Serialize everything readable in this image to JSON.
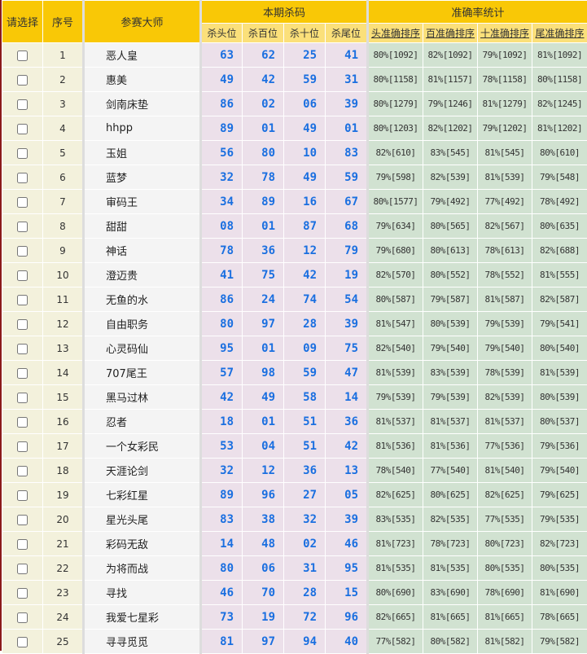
{
  "header": {
    "select": "请选择",
    "no": "序号",
    "master": "参赛大师",
    "kill_group": "本期杀码",
    "acc_group": "准确率统计",
    "kill_cols": [
      "杀头位",
      "杀百位",
      "杀十位",
      "杀尾位"
    ],
    "acc_cols": [
      "头准确排序",
      "百准确排序",
      "十准确排序",
      "尾准确排序"
    ]
  },
  "colors": {
    "header": "#f9c806",
    "subheader": "#fbe07a",
    "kill_text": "#1a6fe0",
    "acc_bg": "#d1e2d1",
    "kill_bg": "#ece0ea"
  },
  "rows": [
    {
      "no": "1",
      "name": "恶人皇",
      "kill": [
        "63",
        "62",
        "25",
        "41"
      ],
      "acc": [
        "80%[1092]",
        "82%[1092]",
        "79%[1092]",
        "81%[1092]"
      ]
    },
    {
      "no": "2",
      "name": "惠美",
      "kill": [
        "49",
        "42",
        "59",
        "31"
      ],
      "acc": [
        "80%[1158]",
        "81%[1157]",
        "78%[1158]",
        "80%[1158]"
      ]
    },
    {
      "no": "3",
      "name": "剑南床垫",
      "kill": [
        "86",
        "02",
        "06",
        "39"
      ],
      "acc": [
        "80%[1279]",
        "79%[1246]",
        "81%[1279]",
        "82%[1245]"
      ]
    },
    {
      "no": "4",
      "name": "hhpp",
      "kill": [
        "89",
        "01",
        "49",
        "01"
      ],
      "acc": [
        "80%[1203]",
        "82%[1202]",
        "79%[1202]",
        "81%[1202]"
      ]
    },
    {
      "no": "5",
      "name": "玉姐",
      "kill": [
        "56",
        "80",
        "10",
        "83"
      ],
      "acc": [
        "82%[610]",
        "83%[545]",
        "81%[545]",
        "80%[610]"
      ]
    },
    {
      "no": "6",
      "name": "蓝梦",
      "kill": [
        "32",
        "78",
        "49",
        "59"
      ],
      "acc": [
        "79%[598]",
        "82%[539]",
        "81%[539]",
        "79%[548]"
      ]
    },
    {
      "no": "7",
      "name": "审码王",
      "kill": [
        "34",
        "89",
        "16",
        "67"
      ],
      "acc": [
        "80%[1577]",
        "79%[492]",
        "77%[492]",
        "78%[492]"
      ]
    },
    {
      "no": "8",
      "name": "甜甜",
      "kill": [
        "08",
        "01",
        "87",
        "68"
      ],
      "acc": [
        "79%[634]",
        "80%[565]",
        "82%[567]",
        "80%[635]"
      ]
    },
    {
      "no": "9",
      "name": "神话",
      "kill": [
        "78",
        "36",
        "12",
        "79"
      ],
      "acc": [
        "79%[680]",
        "80%[613]",
        "78%[613]",
        "82%[688]"
      ]
    },
    {
      "no": "10",
      "name": "澄迈贵",
      "kill": [
        "41",
        "75",
        "42",
        "19"
      ],
      "acc": [
        "82%[570]",
        "80%[552]",
        "78%[552]",
        "81%[555]"
      ]
    },
    {
      "no": "11",
      "name": "无鱼的水",
      "kill": [
        "86",
        "24",
        "74",
        "54"
      ],
      "acc": [
        "80%[587]",
        "79%[587]",
        "81%[587]",
        "82%[587]"
      ]
    },
    {
      "no": "12",
      "name": "自由职务",
      "kill": [
        "80",
        "97",
        "28",
        "39"
      ],
      "acc": [
        "81%[547]",
        "80%[539]",
        "79%[539]",
        "79%[541]"
      ]
    },
    {
      "no": "13",
      "name": "心灵码仙",
      "kill": [
        "95",
        "01",
        "09",
        "75"
      ],
      "acc": [
        "82%[540]",
        "79%[540]",
        "79%[540]",
        "80%[540]"
      ]
    },
    {
      "no": "14",
      "name": "707尾王",
      "kill": [
        "57",
        "98",
        "59",
        "47"
      ],
      "acc": [
        "81%[539]",
        "83%[539]",
        "78%[539]",
        "81%[539]"
      ]
    },
    {
      "no": "15",
      "name": "黑马过林",
      "kill": [
        "42",
        "49",
        "58",
        "14"
      ],
      "acc": [
        "79%[539]",
        "79%[539]",
        "82%[539]",
        "80%[539]"
      ]
    },
    {
      "no": "16",
      "name": "忍者",
      "kill": [
        "18",
        "01",
        "51",
        "36"
      ],
      "acc": [
        "81%[537]",
        "81%[537]",
        "81%[537]",
        "80%[537]"
      ]
    },
    {
      "no": "17",
      "name": "一个女彩民",
      "kill": [
        "53",
        "04",
        "51",
        "42"
      ],
      "acc": [
        "81%[536]",
        "81%[536]",
        "77%[536]",
        "79%[536]"
      ]
    },
    {
      "no": "18",
      "name": "天涯论剑",
      "kill": [
        "32",
        "12",
        "36",
        "13"
      ],
      "acc": [
        "78%[540]",
        "77%[540]",
        "81%[540]",
        "79%[540]"
      ]
    },
    {
      "no": "19",
      "name": "七彩红星",
      "kill": [
        "89",
        "96",
        "27",
        "05"
      ],
      "acc": [
        "82%[625]",
        "80%[625]",
        "82%[625]",
        "79%[625]"
      ]
    },
    {
      "no": "20",
      "name": "星光头尾",
      "kill": [
        "83",
        "38",
        "32",
        "39"
      ],
      "acc": [
        "83%[535]",
        "82%[535]",
        "77%[535]",
        "79%[535]"
      ]
    },
    {
      "no": "21",
      "name": "彩码无敌",
      "kill": [
        "14",
        "48",
        "02",
        "46"
      ],
      "acc": [
        "81%[723]",
        "78%[723]",
        "80%[723]",
        "82%[723]"
      ]
    },
    {
      "no": "22",
      "name": "为将而战",
      "kill": [
        "80",
        "06",
        "31",
        "95"
      ],
      "acc": [
        "81%[535]",
        "81%[535]",
        "80%[535]",
        "80%[535]"
      ]
    },
    {
      "no": "23",
      "name": "寻找",
      "kill": [
        "46",
        "70",
        "28",
        "15"
      ],
      "acc": [
        "80%[690]",
        "83%[690]",
        "78%[690]",
        "81%[690]"
      ]
    },
    {
      "no": "24",
      "name": "我爱七星彩",
      "kill": [
        "73",
        "19",
        "72",
        "96"
      ],
      "acc": [
        "82%[665]",
        "81%[665]",
        "81%[665]",
        "78%[665]"
      ]
    },
    {
      "no": "25",
      "name": "寻寻觅觅",
      "kill": [
        "81",
        "97",
        "94",
        "40"
      ],
      "acc": [
        "77%[582]",
        "80%[582]",
        "81%[582]",
        "79%[582]"
      ]
    }
  ]
}
